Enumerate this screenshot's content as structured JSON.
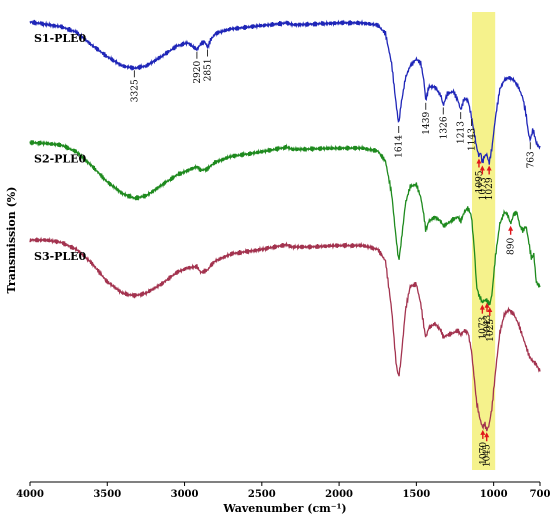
{
  "chart_data": {
    "type": "line",
    "xlabel": "Wavenumber (cm⁻¹)",
    "ylabel": "Transmission (%)",
    "xlim": [
      4000,
      700
    ],
    "x_reversed": true,
    "xticks": [
      4000,
      3500,
      3000,
      2500,
      2000,
      1500,
      1000,
      700
    ],
    "ylim": [
      0,
      100
    ],
    "grid": false,
    "highlight_band": {
      "from": 1140,
      "to": 990,
      "color": "#f5f28c"
    },
    "series": [
      {
        "name": "S1-PLE0",
        "color": "#1f26b8",
        "points": [
          [
            4000,
            97.0
          ],
          [
            3900,
            96.5
          ],
          [
            3800,
            96.0
          ],
          [
            3700,
            94.8
          ],
          [
            3600,
            92.0
          ],
          [
            3500,
            89.5
          ],
          [
            3400,
            87.5
          ],
          [
            3325,
            87.0
          ],
          [
            3250,
            87.5
          ],
          [
            3150,
            89.5
          ],
          [
            3050,
            91.8
          ],
          [
            2980,
            92.5
          ],
          [
            2920,
            91.0
          ],
          [
            2895,
            92.3
          ],
          [
            2870,
            92.8
          ],
          [
            2851,
            91.5
          ],
          [
            2830,
            93.2
          ],
          [
            2800,
            94.5
          ],
          [
            2700,
            95.5
          ],
          [
            2500,
            96.2
          ],
          [
            2340,
            96.8
          ],
          [
            2300,
            96.4
          ],
          [
            2200,
            96.5
          ],
          [
            2000,
            96.8
          ],
          [
            1850,
            96.8
          ],
          [
            1750,
            96.3
          ],
          [
            1700,
            94.5
          ],
          [
            1660,
            88.0
          ],
          [
            1630,
            79.0
          ],
          [
            1614,
            75.0
          ],
          [
            1600,
            79.0
          ],
          [
            1570,
            85.0
          ],
          [
            1540,
            87.5
          ],
          [
            1500,
            89.0
          ],
          [
            1470,
            88.0
          ],
          [
            1450,
            84.0
          ],
          [
            1439,
            80.0
          ],
          [
            1420,
            83.0
          ],
          [
            1380,
            83.0
          ],
          [
            1340,
            81.0
          ],
          [
            1326,
            79.0
          ],
          [
            1300,
            81.5
          ],
          [
            1260,
            82.0
          ],
          [
            1230,
            80.0
          ],
          [
            1213,
            78.0
          ],
          [
            1190,
            80.5
          ],
          [
            1165,
            80.0
          ],
          [
            1143,
            76.5
          ],
          [
            1125,
            73.0
          ],
          [
            1110,
            70.0
          ],
          [
            1095,
            68.0
          ],
          [
            1085,
            69.0
          ],
          [
            1073,
            66.5
          ],
          [
            1060,
            68.0
          ],
          [
            1045,
            68.5
          ],
          [
            1029,
            66.5
          ],
          [
            1010,
            70.0
          ],
          [
            990,
            76.0
          ],
          [
            960,
            82.5
          ],
          [
            930,
            84.5
          ],
          [
            900,
            85.0
          ],
          [
            870,
            84.5
          ],
          [
            840,
            83.0
          ],
          [
            810,
            80.5
          ],
          [
            790,
            77.0
          ],
          [
            775,
            73.0
          ],
          [
            763,
            71.5
          ],
          [
            745,
            74.0
          ],
          [
            725,
            71.0
          ],
          [
            705,
            70.0
          ]
        ]
      },
      {
        "name": "S2-PLE0",
        "color": "#1e8a1e",
        "points": [
          [
            4000,
            71.0
          ],
          [
            3900,
            70.8
          ],
          [
            3800,
            70.5
          ],
          [
            3700,
            69.0
          ],
          [
            3600,
            66.0
          ],
          [
            3500,
            62.5
          ],
          [
            3400,
            60.0
          ],
          [
            3325,
            59.0
          ],
          [
            3250,
            59.5
          ],
          [
            3150,
            61.8
          ],
          [
            3050,
            64.0
          ],
          [
            2980,
            65.0
          ],
          [
            2920,
            65.8
          ],
          [
            2895,
            65.0
          ],
          [
            2870,
            65.2
          ],
          [
            2851,
            65.3
          ],
          [
            2830,
            66.0
          ],
          [
            2800,
            66.8
          ],
          [
            2700,
            68.0
          ],
          [
            2500,
            69.0
          ],
          [
            2340,
            70.0
          ],
          [
            2300,
            69.5
          ],
          [
            2200,
            69.6
          ],
          [
            2000,
            69.8
          ],
          [
            1850,
            69.8
          ],
          [
            1750,
            69.2
          ],
          [
            1700,
            67.0
          ],
          [
            1660,
            60.0
          ],
          [
            1630,
            50.0
          ],
          [
            1614,
            45.5
          ],
          [
            1600,
            49.0
          ],
          [
            1570,
            58.0
          ],
          [
            1540,
            61.5
          ],
          [
            1500,
            62.0
          ],
          [
            1470,
            59.0
          ],
          [
            1450,
            55.0
          ],
          [
            1439,
            52.0
          ],
          [
            1420,
            54.0
          ],
          [
            1380,
            55.0
          ],
          [
            1340,
            54.0
          ],
          [
            1326,
            53.0
          ],
          [
            1300,
            53.5
          ],
          [
            1260,
            54.5
          ],
          [
            1230,
            55.0
          ],
          [
            1213,
            54.0
          ],
          [
            1190,
            56.0
          ],
          [
            1165,
            57.0
          ],
          [
            1143,
            55.0
          ],
          [
            1125,
            48.0
          ],
          [
            1110,
            40.0
          ],
          [
            1095,
            38.0
          ],
          [
            1085,
            37.5
          ],
          [
            1073,
            36.5
          ],
          [
            1060,
            37.0
          ],
          [
            1045,
            37.0
          ],
          [
            1025,
            36.0
          ],
          [
            1010,
            38.5
          ],
          [
            990,
            46.0
          ],
          [
            960,
            53.5
          ],
          [
            930,
            56.0
          ],
          [
            910,
            55.5
          ],
          [
            890,
            53.5
          ],
          [
            870,
            55.5
          ],
          [
            850,
            56.0
          ],
          [
            830,
            53.0
          ],
          [
            810,
            52.0
          ],
          [
            790,
            53.0
          ],
          [
            770,
            49.0
          ],
          [
            755,
            46.0
          ],
          [
            740,
            47.0
          ],
          [
            725,
            41.0
          ],
          [
            705,
            40.0
          ]
        ]
      },
      {
        "name": "S3-PLE0",
        "color": "#a3334f",
        "points": [
          [
            4000,
            50.0
          ],
          [
            3900,
            50.0
          ],
          [
            3800,
            49.5
          ],
          [
            3700,
            48.0
          ],
          [
            3600,
            45.0
          ],
          [
            3500,
            41.0
          ],
          [
            3400,
            38.5
          ],
          [
            3325,
            38.0
          ],
          [
            3250,
            38.5
          ],
          [
            3150,
            40.5
          ],
          [
            3050,
            43.0
          ],
          [
            2980,
            44.0
          ],
          [
            2920,
            44.3
          ],
          [
            2895,
            43.0
          ],
          [
            2870,
            43.3
          ],
          [
            2851,
            43.5
          ],
          [
            2830,
            44.5
          ],
          [
            2800,
            45.5
          ],
          [
            2700,
            47.0
          ],
          [
            2500,
            48.0
          ],
          [
            2340,
            49.0
          ],
          [
            2300,
            48.5
          ],
          [
            2200,
            48.5
          ],
          [
            2000,
            48.8
          ],
          [
            1850,
            48.8
          ],
          [
            1750,
            48.0
          ],
          [
            1700,
            45.5
          ],
          [
            1660,
            35.0
          ],
          [
            1630,
            23.0
          ],
          [
            1614,
            20.5
          ],
          [
            1600,
            24.0
          ],
          [
            1570,
            35.0
          ],
          [
            1540,
            40.0
          ],
          [
            1500,
            40.5
          ],
          [
            1470,
            36.0
          ],
          [
            1450,
            31.0
          ],
          [
            1439,
            29.0
          ],
          [
            1420,
            31.0
          ],
          [
            1380,
            32.0
          ],
          [
            1340,
            30.5
          ],
          [
            1326,
            29.0
          ],
          [
            1300,
            29.5
          ],
          [
            1260,
            30.0
          ],
          [
            1230,
            30.5
          ],
          [
            1213,
            29.5
          ],
          [
            1190,
            30.5
          ],
          [
            1165,
            30.0
          ],
          [
            1143,
            26.0
          ],
          [
            1125,
            20.0
          ],
          [
            1110,
            15.0
          ],
          [
            1095,
            12.5
          ],
          [
            1085,
            11.0
          ],
          [
            1070,
            9.5
          ],
          [
            1058,
            10.5
          ],
          [
            1045,
            9.0
          ],
          [
            1030,
            10.0
          ],
          [
            1010,
            14.0
          ],
          [
            990,
            21.0
          ],
          [
            960,
            30.0
          ],
          [
            930,
            34.0
          ],
          [
            900,
            35.0
          ],
          [
            870,
            34.0
          ],
          [
            840,
            32.0
          ],
          [
            810,
            29.0
          ],
          [
            790,
            27.0
          ],
          [
            770,
            25.0
          ],
          [
            750,
            24.0
          ],
          [
            730,
            23.5
          ],
          [
            705,
            22.0
          ]
        ]
      }
    ],
    "annotations": [
      {
        "series": 0,
        "label": "3325",
        "x": 3325,
        "arrow": false
      },
      {
        "series": 0,
        "label": "2920",
        "x": 2920,
        "arrow": false
      },
      {
        "series": 0,
        "label": "2851",
        "x": 2851,
        "arrow": false
      },
      {
        "series": 0,
        "label": "1614",
        "x": 1614,
        "arrow": false
      },
      {
        "series": 0,
        "label": "1439",
        "x": 1439,
        "arrow": false
      },
      {
        "series": 0,
        "label": "1326",
        "x": 1326,
        "arrow": false
      },
      {
        "series": 0,
        "label": "1213",
        "x": 1213,
        "arrow": false
      },
      {
        "series": 0,
        "label": "1143",
        "x": 1143,
        "arrow": false
      },
      {
        "series": 0,
        "label": "1095",
        "x": 1095,
        "arrow": true
      },
      {
        "series": 0,
        "label": "1073",
        "x": 1073,
        "arrow": true
      },
      {
        "series": 0,
        "label": "1029",
        "x": 1029,
        "arrow": true
      },
      {
        "series": 0,
        "label": "763",
        "x": 763,
        "arrow": false
      },
      {
        "series": 1,
        "label": "890",
        "x": 890,
        "arrow": true
      },
      {
        "series": 1,
        "label": "1073",
        "x": 1073,
        "arrow": true
      },
      {
        "series": 1,
        "label": "1043",
        "x": 1043,
        "arrow": true
      },
      {
        "series": 1,
        "label": "1025",
        "x": 1025,
        "arrow": true
      },
      {
        "series": 2,
        "label": "1070",
        "x": 1070,
        "arrow": true
      },
      {
        "series": 2,
        "label": "1045",
        "x": 1045,
        "arrow": true
      }
    ]
  }
}
